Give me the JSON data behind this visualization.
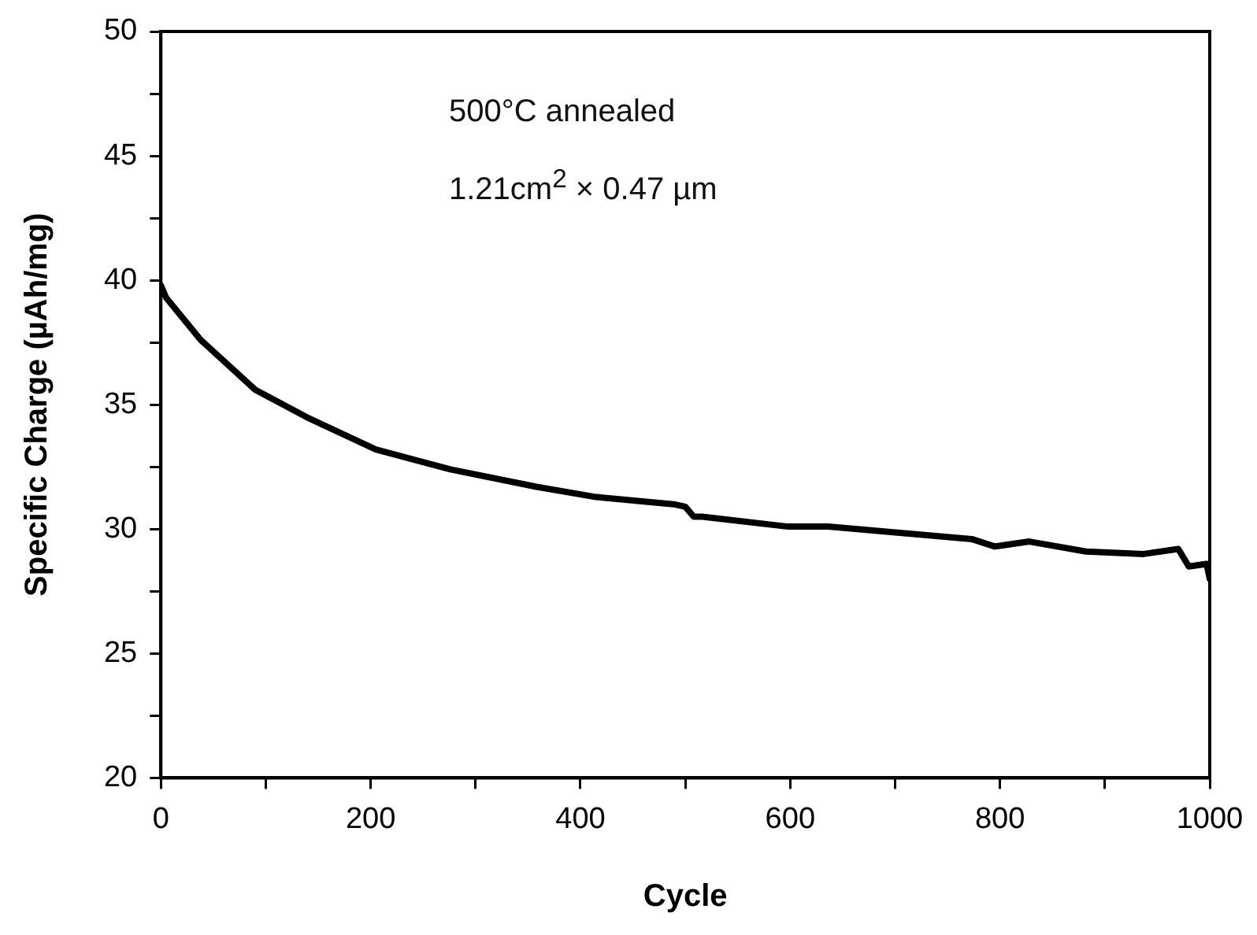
{
  "chart_data": {
    "type": "line",
    "xlabel": "Cycle",
    "ylabel": "Specific Charge (µAh/mg)",
    "annotations": [
      "500°C annealed",
      "1.21cm$^{2}$ × 0.47 µm"
    ],
    "x": [
      0,
      5,
      38,
      90,
      139,
      205,
      276,
      358,
      413,
      489,
      500,
      508,
      516,
      598,
      636,
      773,
      795,
      828,
      882,
      937,
      970,
      980,
      997,
      1000
    ],
    "values": [
      39.8,
      39.3,
      37.6,
      35.6,
      34.5,
      33.2,
      32.4,
      31.7,
      31.3,
      31.0,
      30.9,
      30.5,
      30.5,
      30.1,
      30.1,
      29.6,
      29.3,
      29.5,
      29.1,
      29.0,
      29.2,
      28.5,
      28.6,
      28.0
    ],
    "color": "#000000",
    "marker": "none",
    "line_style": "solid",
    "grid": false,
    "legend": false,
    "xlim": [
      0,
      1000
    ],
    "xticks": [
      0,
      {
        "value": 100,
        "label": null
      },
      200,
      {
        "value": 300,
        "label": null
      },
      400,
      {
        "value": 500,
        "label": null
      },
      600,
      {
        "value": 700,
        "label": null
      },
      800,
      {
        "value": 900,
        "label": null
      },
      1000
    ],
    "ylim": [
      20,
      50
    ],
    "yticks": [
      20,
      {
        "value": 22.5,
        "label": null
      },
      25,
      {
        "value": 27.5,
        "label": null
      },
      30,
      {
        "value": 32.5,
        "label": null
      },
      35,
      {
        "value": 37.5,
        "label": null
      },
      40,
      {
        "value": 42.5,
        "label": null
      },
      45,
      {
        "value": 47.5,
        "label": null
      },
      50
    ]
  }
}
